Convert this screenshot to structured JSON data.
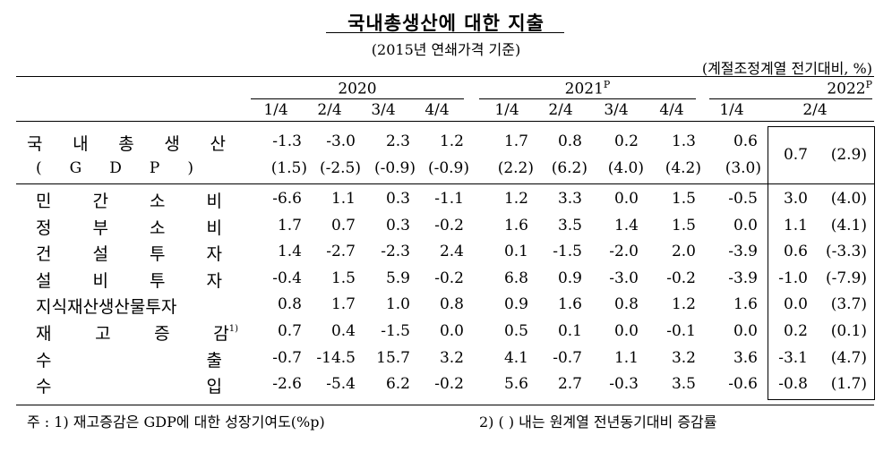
{
  "title": "국내총생산에 대한 지출",
  "subtitle": "(2015년 연쇄가격 기준)",
  "unit": "(계절조정계열 전기대비, %)",
  "years": [
    {
      "label": "2020",
      "sup": ""
    },
    {
      "label": "2021",
      "sup": "P"
    },
    {
      "label": "2022",
      "sup": "P"
    }
  ],
  "quarters": [
    "1/4",
    "2/4",
    "3/4",
    "4/4",
    "1/4",
    "2/4",
    "3/4",
    "4/4",
    "1/4",
    "2/4"
  ],
  "gdp": {
    "label_chars": [
      "국",
      "내",
      "총",
      "생",
      "산"
    ],
    "sub_chars": [
      "(",
      "G",
      "D",
      "P",
      ")"
    ],
    "values": [
      "-1.3",
      "-3.0",
      "2.3",
      "1.2",
      "1.7",
      "0.8",
      "0.2",
      "1.3",
      "0.6"
    ],
    "yoy": [
      "(1.5)",
      "(-2.5)",
      "(-0.9)",
      "(-0.9)",
      "(2.2)",
      "(6.2)",
      "(4.0)",
      "(4.2)",
      "(3.0)"
    ],
    "latest": "0.7",
    "latest_yoy": "(2.9)"
  },
  "rows": [
    {
      "chars": [
        "민",
        "간",
        "소",
        "비"
      ],
      "sup": "",
      "values": [
        "-6.6",
        "1.1",
        "0.3",
        "-1.1",
        "1.2",
        "3.3",
        "0.0",
        "1.5",
        "-0.5",
        "3.0"
      ],
      "yoy": "(4.0)"
    },
    {
      "chars": [
        "정",
        "부",
        "소",
        "비"
      ],
      "sup": "",
      "values": [
        "1.7",
        "0.7",
        "0.3",
        "-0.2",
        "1.6",
        "3.5",
        "1.4",
        "1.5",
        "0.0",
        "1.1"
      ],
      "yoy": "(4.1)"
    },
    {
      "chars": [
        "건",
        "설",
        "투",
        "자"
      ],
      "sup": "",
      "values": [
        "1.4",
        "-2.7",
        "-2.3",
        "2.4",
        "0.1",
        "-1.5",
        "-2.0",
        "2.0",
        "-3.9",
        "0.6"
      ],
      "yoy": "(-3.3)"
    },
    {
      "chars": [
        "설",
        "비",
        "투",
        "자"
      ],
      "sup": "",
      "values": [
        "-0.4",
        "1.5",
        "5.9",
        "-0.2",
        "6.8",
        "0.9",
        "-3.0",
        "-0.2",
        "-3.9",
        "-1.0"
      ],
      "yoy": "(-7.9)"
    },
    {
      "chars": [
        "지식재산생산물투자"
      ],
      "sup": "",
      "values": [
        "0.8",
        "1.7",
        "1.0",
        "0.8",
        "0.9",
        "1.6",
        "0.8",
        "1.2",
        "1.6",
        "0.0"
      ],
      "yoy": "(3.7)"
    },
    {
      "chars": [
        "재",
        "고",
        "증",
        "감"
      ],
      "sup": "1)",
      "values": [
        "0.7",
        "0.4",
        "-1.5",
        "0.0",
        "0.5",
        "0.1",
        "0.0",
        "-0.1",
        "0.0",
        "0.2"
      ],
      "yoy": "(0.1)"
    },
    {
      "chars": [
        "수",
        "출"
      ],
      "sup": "",
      "values": [
        "-0.7",
        "-14.5",
        "15.7",
        "3.2",
        "4.1",
        "-0.7",
        "1.1",
        "3.2",
        "3.6",
        "-3.1"
      ],
      "yoy": "(4.7)"
    },
    {
      "chars": [
        "수",
        "입"
      ],
      "sup": "",
      "values": [
        "-2.6",
        "-5.4",
        "6.2",
        "-0.2",
        "5.6",
        "2.7",
        "-0.3",
        "3.5",
        "-0.6",
        "-0.8"
      ],
      "yoy": "(1.7)"
    }
  ],
  "footnotes": {
    "note1": "주 : 1)  재고증감은 GDP에 대한 성장기여도(%p)",
    "note2": "2)  (   )  내는 원계열 전년동기대비 증감률"
  }
}
